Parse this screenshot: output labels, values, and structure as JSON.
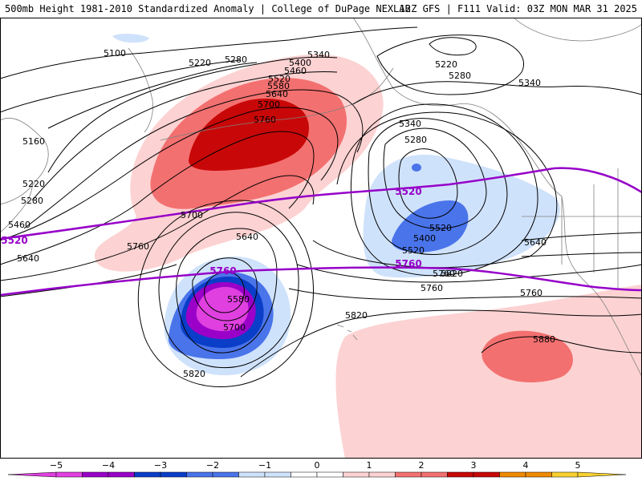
{
  "header": {
    "left_title": "500mb Height 1981-2010 Standardized Anomaly | College of DuPage NEXLAB",
    "right_title": "12Z GFS | F111 Valid: 03Z MON MAR 31 2025"
  },
  "colors": {
    "neg5": "#e040e0",
    "neg4": "#9a00c8",
    "neg3": "#0a3ec8",
    "neg2": "#4a74ea",
    "neg1": "#cfe2fb",
    "pos1": "#fcd2d2",
    "pos2": "#f37070",
    "pos3": "#c80808",
    "pos4": "#f08a00",
    "pos5": "#f8d030",
    "highlight_contour": "#9600c8",
    "contour": "#000000",
    "coast": "#808080"
  },
  "height_labels": [
    "5100",
    "5220",
    "5280",
    "5340",
    "5400",
    "5460",
    "5520",
    "5580",
    "5640",
    "5700",
    "5760",
    "5160",
    "5220",
    "5280",
    "5460",
    "5640",
    "5760",
    "5820",
    "5880",
    "5580",
    "5700",
    "5220",
    "5280",
    "5340",
    "5340",
    "5280",
    "5400",
    "5520",
    "5640",
    "5700",
    "5760",
    "5820",
    "5520",
    "5760",
    "5640",
    "5820",
    "5760"
  ],
  "highlight_labels": [
    "5520",
    "5520",
    "5760",
    "5760"
  ],
  "colorbar": {
    "ticks": [
      "−5",
      "−4",
      "−3",
      "−2",
      "−1",
      "0",
      "1",
      "2",
      "3",
      "4",
      "5"
    ]
  }
}
